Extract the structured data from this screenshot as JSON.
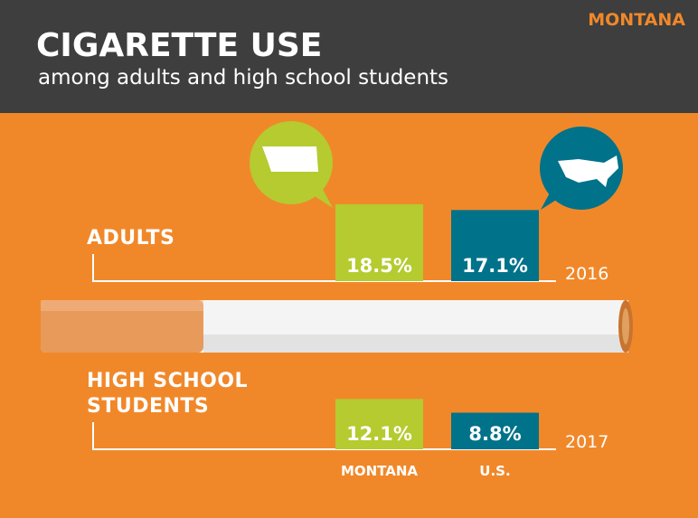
{
  "chart_data": {
    "type": "bar",
    "state": "MONTANA",
    "title": "CIGARETTE USE",
    "subtitle": "among adults and high school students",
    "categories": [
      "MONTANA",
      "U.S."
    ],
    "colors": [
      "#b5cb2f",
      "#00728a"
    ],
    "groups": [
      {
        "name": "ADULTS",
        "year": "2016",
        "values": [
          18.5,
          17.1
        ],
        "value_labels": [
          "18.5%",
          "17.1%"
        ]
      },
      {
        "name": "HIGH SCHOOL STUDENTS",
        "year": "2017",
        "values": [
          12.1,
          8.8
        ],
        "value_labels": [
          "12.1%",
          "8.8%"
        ]
      }
    ]
  }
}
